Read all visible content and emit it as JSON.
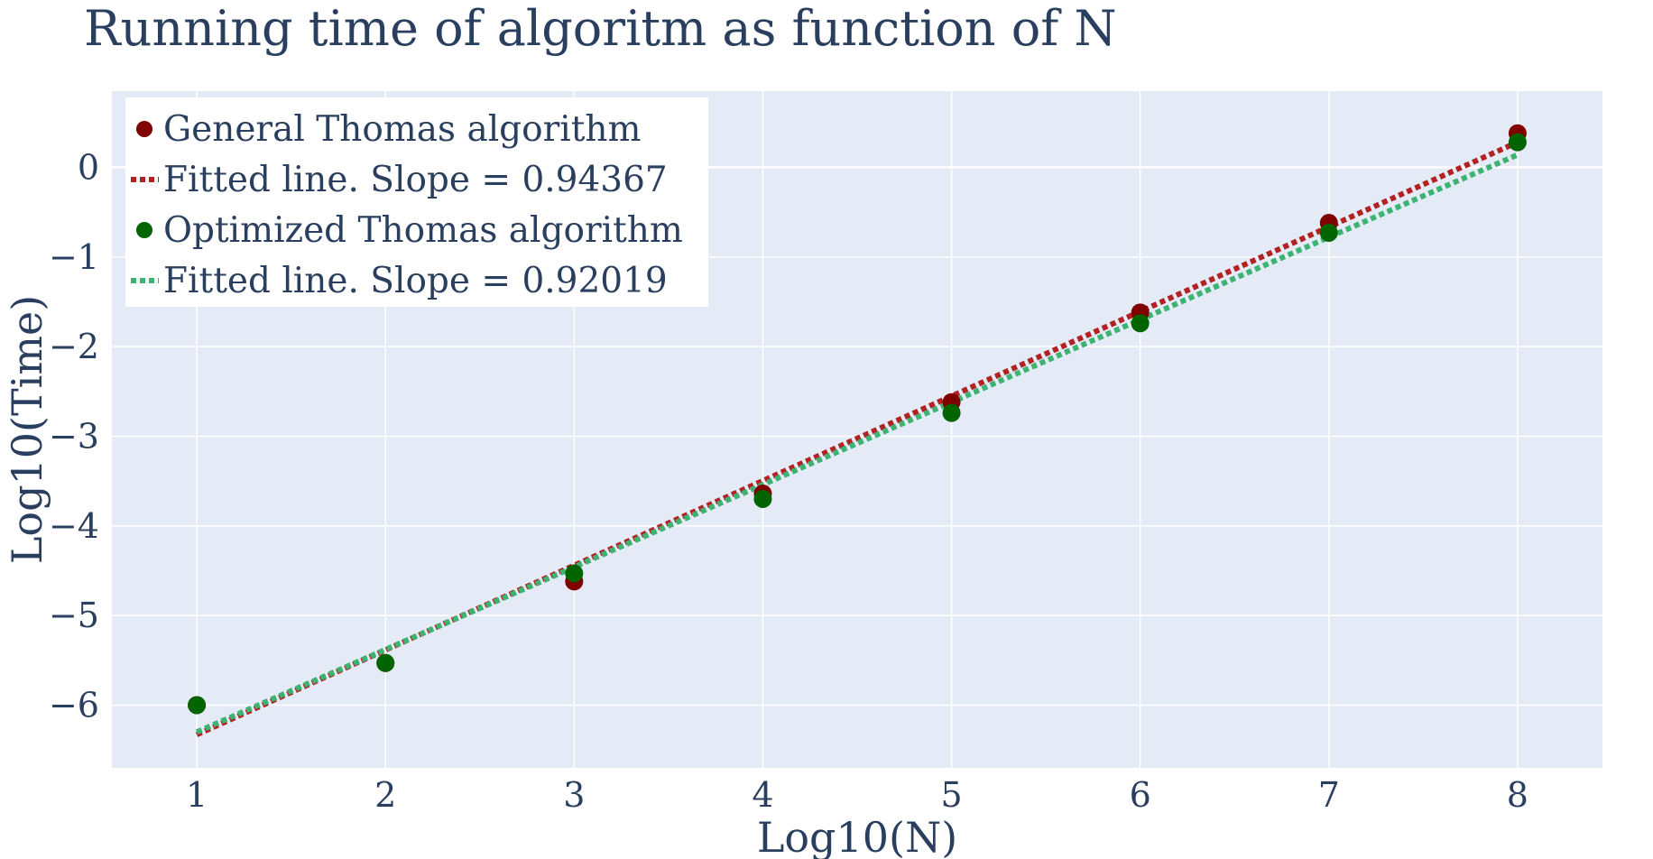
{
  "chart_data": {
    "type": "scatter",
    "title": "Running time of algoritm as function of N",
    "xlabel": "Log10(N)",
    "ylabel": "Log10(Time)",
    "xlim": [
      0.55,
      8.45
    ],
    "ylim": [
      -6.7,
      0.85
    ],
    "xticks": [
      1,
      2,
      3,
      4,
      5,
      6,
      7,
      8
    ],
    "yticks": [
      0,
      -1,
      -2,
      -3,
      -4,
      -5,
      -6
    ],
    "xtick_labels": [
      "1",
      "2",
      "3",
      "4",
      "5",
      "6",
      "7",
      "8"
    ],
    "ytick_labels": [
      "0",
      "−1",
      "−2",
      "−3",
      "−4",
      "−5",
      "−6"
    ],
    "grid": true,
    "legend_position": "top-left",
    "background_color": "#e5ebf6",
    "text_color": "#2a3f5f",
    "series": [
      {
        "name": "General Thomas algorithm",
        "kind": "markers",
        "color": "#800000",
        "x": [
          1,
          2,
          3,
          4,
          5,
          6,
          7,
          8
        ],
        "y": [
          -6.0,
          -5.53,
          -4.62,
          -3.64,
          -2.62,
          -1.62,
          -0.62,
          0.38
        ]
      },
      {
        "name": "Fitted line. Slope = 0.94367",
        "kind": "dotted-line",
        "color": "#b22222",
        "x": [
          1,
          8
        ],
        "y": [
          -6.33,
          0.28
        ]
      },
      {
        "name": "Optimized Thomas algorithm",
        "kind": "markers",
        "color": "#006400",
        "x": [
          1,
          2,
          3,
          4,
          5,
          6,
          7,
          8
        ],
        "y": [
          -6.0,
          -5.53,
          -4.53,
          -3.7,
          -2.74,
          -1.74,
          -0.73,
          0.28
        ]
      },
      {
        "name": "Fitted line. Slope = 0.92019",
        "kind": "dotted-line",
        "color": "#3cb371",
        "x": [
          1,
          8
        ],
        "y": [
          -6.3,
          0.14
        ]
      }
    ]
  }
}
